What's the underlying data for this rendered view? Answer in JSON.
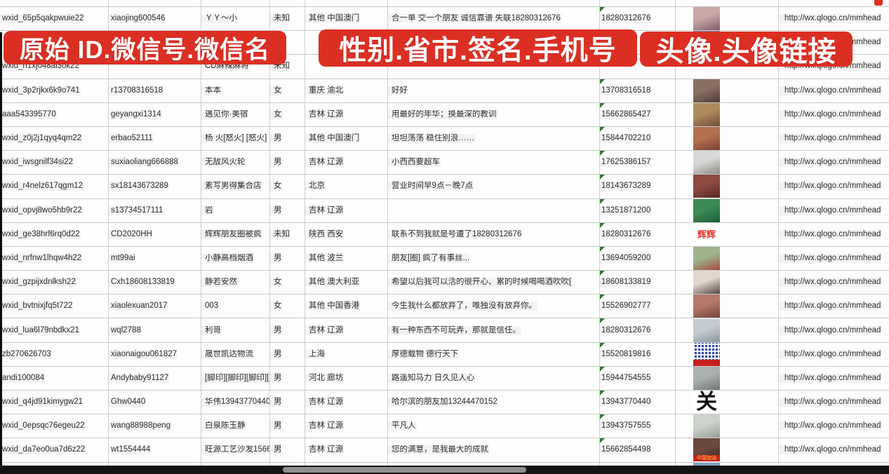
{
  "overlays": [
    {
      "label": "原始 ID.微信号.微信名"
    },
    {
      "label": "性别.省市.签名.手机号"
    },
    {
      "label": "头像.头像链接"
    }
  ],
  "overlay_color": "#dc2f23",
  "error_triangle_color": "#2f7d32",
  "url_text": "http://wx.qlogo.cn/mmhead",
  "rows": [
    {
      "wxid": "wxid_65p5qakpwuie22",
      "account": "xiaojing600546",
      "name": "ＹＹ～小",
      "gender": "未知",
      "region": "其他 中国澳门",
      "signature": "合一单 交一个朋友 诚信靠谱 失联18280312676",
      "phone": "18280312676",
      "url": "http://wx.qlogo.cn/mmhead",
      "avatar": {
        "kind": "photo",
        "colors": [
          "#caa7a4",
          "#7d5b68"
        ]
      }
    },
    {
      "wxid": "",
      "account": "",
      "name": "",
      "gender": "",
      "region": "",
      "signature": "",
      "phone": "5386",
      "phone_indent": 18,
      "no_tri": true,
      "url": "http://wx.qlogo.cn/mmhead",
      "avatar": {
        "kind": "photo",
        "colors": [
          "#7a85b5",
          "#4d5a96"
        ]
      }
    },
    {
      "wxid": "wxid_h1xj048al3ok22",
      "account": "",
      "name": "CD麻辣麻将",
      "gender": "未知",
      "region": "",
      "signature": "",
      "phone": "",
      "url": "http://wx.qlogo.cn/mmhead",
      "avatar": {
        "kind": "none"
      }
    },
    {
      "wxid": "wxid_3p2rjkx6k9o741",
      "account": "r13708316518",
      "name": "本本",
      "gender": "女",
      "region": "重庆 渝北",
      "signature": "好好",
      "phone": "13708316518",
      "url": "http://wx.qlogo.cn/mmhead",
      "avatar": {
        "kind": "photo",
        "colors": [
          "#8a7064",
          "#4c3b38"
        ]
      }
    },
    {
      "wxid": "aaa543395770",
      "account": "geyangxi1314",
      "name": "遇见你·美宿",
      "gender": "女",
      "region": "吉林 辽源",
      "signature": "用最好的年华；换最深的教训",
      "phone": "15662865427",
      "url": "http://wx.qlogo.cn/mmhead",
      "avatar": {
        "kind": "photo",
        "colors": [
          "#b08a5e",
          "#6e4a33"
        ]
      }
    },
    {
      "wxid": "wxid_z0j2j1qyq4qm22",
      "account": "erbao52111",
      "name": "杨 火[怒火] [怒火]",
      "gender": "男",
      "region": "其他 中国澳门",
      "signature": "坦坦荡荡 稳住别浪……",
      "phone": "15844702210",
      "url": "http://wx.qlogo.cn/mmhead",
      "avatar": {
        "kind": "photo",
        "colors": [
          "#b4704f",
          "#7e3f33"
        ]
      }
    },
    {
      "wxid": "wxid_iwsgnilf34si22",
      "account": "suxiaoliang666888",
      "name": "无敌风火轮",
      "gender": "男",
      "region": "吉林 辽源",
      "signature": "小西西要超车",
      "phone": "17625386157",
      "url": "http://wx.qlogo.cn/mmhead",
      "avatar": {
        "kind": "photo",
        "colors": [
          "#d8d8d6",
          "#8e8b86"
        ]
      }
    },
    {
      "wxid": "wxid_r4nelz617qgm12",
      "account": "sx18143673289",
      "name": "素写男得集合店",
      "gender": "女",
      "region": "北京",
      "signature": "营业时间早9点－晚7点",
      "phone": "18143673289",
      "url": "http://wx.qlogo.cn/mmhead",
      "avatar": {
        "kind": "photo",
        "colors": [
          "#8c4a40",
          "#5a2723"
        ]
      }
    },
    {
      "wxid": "wxid_opvj8wo5hb9r22",
      "account": "s13734517111",
      "name": "岩",
      "gender": "男",
      "region": "吉林 辽源",
      "signature": "",
      "phone": "13251871200",
      "url": "http://wx.qlogo.cn/mmhead",
      "avatar": {
        "kind": "photo",
        "colors": [
          "#3c8a55",
          "#1f5c38"
        ]
      }
    },
    {
      "wxid": "wxid_ge38hrf6rq0d22",
      "account": "CD2020HH",
      "name": "辉辉朋友圈被疯",
      "gender": "未知",
      "region": "陕西 西安",
      "signature": "联系不到我就是号遭了18280312676",
      "phone": "18280312676",
      "url": "http://wx.qlogo.cn/mmhead",
      "avatar": {
        "kind": "text",
        "bg": "#ffffff",
        "text": "辉辉",
        "color": "#e03a2f",
        "size": 13
      }
    },
    {
      "wxid": "wxid_nrfnw1lhqw4h22",
      "account": "mt99ai",
      "name": "小静高档烟酒",
      "gender": "男",
      "region": "其他 波兰",
      "signature": "朋友[圈] 疯了有事丝.,.",
      "phone": "13694059200",
      "url": "http://wx.qlogo.cn/mmhead",
      "avatar": {
        "kind": "photo",
        "colors": [
          "#9db48e",
          "#a34a3a"
        ]
      }
    },
    {
      "wxid": "wxid_gzpijxdnlksh22",
      "account": "Cxh18608133819",
      "name": "静若安然",
      "gender": "女",
      "region": "其他 澳大利亚",
      "signature": "希望以后我可以活的很开心、累的时候喝喝酒吹吹[",
      "phone": "18608133819",
      "url": "http://wx.qlogo.cn/mmhead",
      "avatar": {
        "kind": "photo",
        "colors": [
          "#e2d6cd",
          "#574641"
        ]
      }
    },
    {
      "wxid": "wxid_bvtnixjfq5t722",
      "account": "xiaolexuan2017",
      "name": "003",
      "gender": "女",
      "region": "其他 中国香港",
      "signature": "今生我什么都放弃了，唯独没有放弃你。",
      "phone": "15526902777",
      "url": "http://wx.qlogo.cn/mmhead",
      "avatar": {
        "kind": "photo",
        "colors": [
          "#b4786a",
          "#74443c"
        ]
      }
    },
    {
      "wxid": "wxid_lua6l79nbdkx21",
      "account": "wql2788",
      "name": "利哥",
      "gender": "男",
      "region": "吉林 辽源",
      "signature": "有一种东西不可玩弄，那就是信任。",
      "phone": "18280312676",
      "url": "http://wx.qlogo.cn/mmhead",
      "avatar": {
        "kind": "photo",
        "colors": [
          "#c3ccd2",
          "#8a959e"
        ]
      }
    },
    {
      "wxid": "zb270626703",
      "account": "xiaonaigou061827",
      "name": "晟世凯达物流",
      "gender": "男",
      "region": "上海",
      "signature": "厚德载物 德行天下",
      "phone": "15520819816",
      "url": "http://wx.qlogo.cn/mmhead",
      "avatar": {
        "kind": "qr",
        "strip": "#c5201d"
      }
    },
    {
      "wxid": "andi100084",
      "account": "Andybaby91127",
      "name": "[脚印][脚印][脚印][脚",
      "gender": "男",
      "region": "河北 廊坊",
      "signature": "路遥知马力 日久见人心",
      "phone": "15944754555",
      "url": "http://wx.qlogo.cn/mmhead",
      "avatar": {
        "kind": "photo",
        "colors": [
          "#aab0ae",
          "#6f7673"
        ]
      }
    },
    {
      "wxid": "wxid_q4jd91kimygw21",
      "account": "Ghw0440",
      "name": "华伟13943770440",
      "gender": "男",
      "region": "吉林 辽源",
      "signature": "哈尔滨的朋友加13244470152",
      "phone": "13943770440",
      "url": "http://wx.qlogo.cn/mmhead",
      "avatar": {
        "kind": "text",
        "bg": "#ffffff",
        "text": "关",
        "color": "#121212",
        "size": 30
      }
    },
    {
      "wxid": "wxid_0epsqc76egeu22",
      "account": "wang88988peng",
      "name": "白泉陈玉静",
      "gender": "男",
      "region": "吉林 辽源",
      "signature": "平凡人",
      "phone": "13943757555",
      "url": "http://wx.qlogo.cn/mmhead",
      "avatar": {
        "kind": "photo",
        "colors": [
          "#cdd2cd",
          "#979d98"
        ]
      }
    },
    {
      "wxid": "wxid_da7eo0ua7d6z22",
      "account": "wt1554444",
      "name": "旺源工艺沙发15662854",
      "gender": "男",
      "region": "吉林 辽源",
      "signature": "您的满意，是我最大的成就",
      "phone": "15662854498",
      "url": "http://wx.qlogo.cn/mmhead",
      "avatar": {
        "kind": "banner",
        "colors": [
          "#6a4a3c",
          "#3c2a24"
        ],
        "strip": "#c5201d",
        "strip_text": "中国加油",
        "strip_color": "#ffd23a"
      }
    },
    {
      "wxid": "",
      "account": "",
      "name": "",
      "gender": "",
      "region": "",
      "signature": "",
      "phone": "",
      "url": "",
      "avatar": {
        "kind": "photo",
        "colors": [
          "#7da0c0",
          "#4a6e96"
        ]
      }
    }
  ]
}
